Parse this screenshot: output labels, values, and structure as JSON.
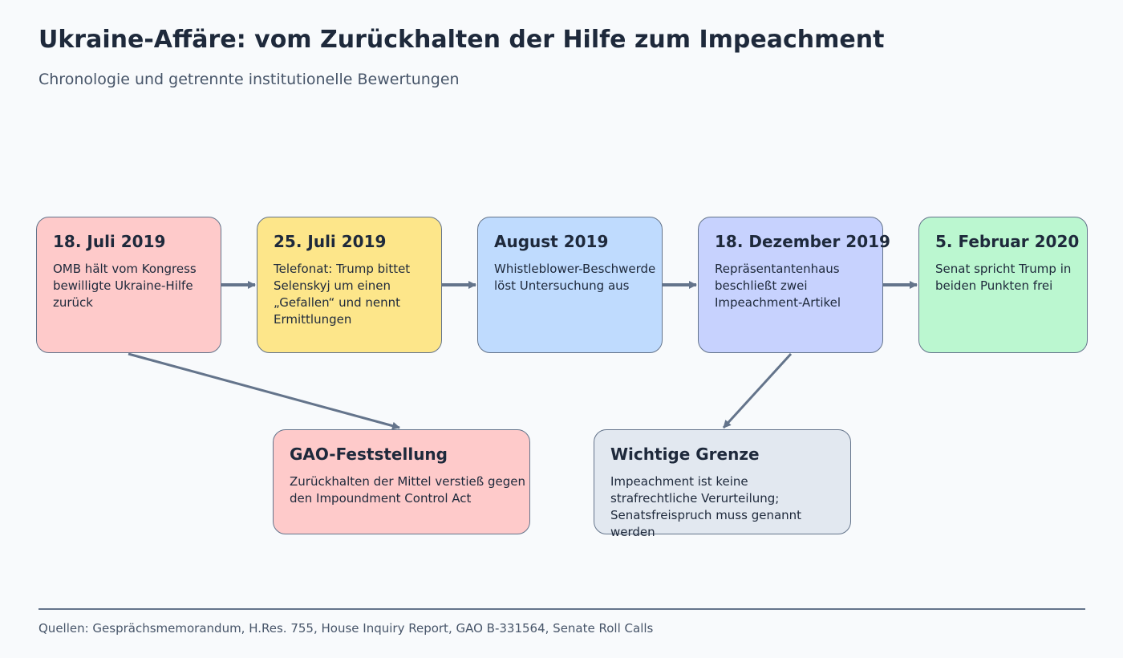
{
  "title": "Ukraine-Affäre: vom Zurückhalten der Hilfe zum Impeachment",
  "subtitle": "Chronologie und getrennte institutionelle Bewertungen",
  "timeline": [
    {
      "date": "18. Juli 2019",
      "text": "OMB hält vom Kongress bewilligte Ukraine-Hilfe zurück",
      "color": "#fecaca"
    },
    {
      "date": "25. Juli 2019",
      "text": "Telefonat: Trump bittet Selenskyj um einen „Gefallen“ und nennt Ermittlungen",
      "color": "#fde68a"
    },
    {
      "date": "August 2019",
      "text": "Whistleblower-Beschwerde löst Untersuchung aus",
      "color": "#bfdbfe"
    },
    {
      "date": "18. Dezember 2019",
      "text": "Repräsentantenhaus beschließt zwei Impeachment-Artikel",
      "color": "#c7d2fe"
    },
    {
      "date": "5. Februar 2020",
      "text": "Senat spricht Trump in beiden Punkten frei",
      "color": "#bbf7d0"
    }
  ],
  "notes": [
    {
      "heading": "GAO-Feststellung",
      "text": "Zurückhalten der Mittel verstieß gegen den Impoundment Control Act",
      "color": "#fecaca"
    },
    {
      "heading": "Wichtige Grenze",
      "text": "Impeachment ist keine strafrechtliche Verurteilung; Senatsfreispruch muss genannt werden",
      "color": "#e2e8f0"
    }
  ],
  "footer": "Quellen: Gesprächsmemorandum, H.Res. 755, House Inquiry Report, GAO B-331564, Senate Roll Calls",
  "colors": {
    "connector": "#64748b",
    "text": "#1e293b",
    "muted": "#475569",
    "background": "#f8fafc"
  }
}
